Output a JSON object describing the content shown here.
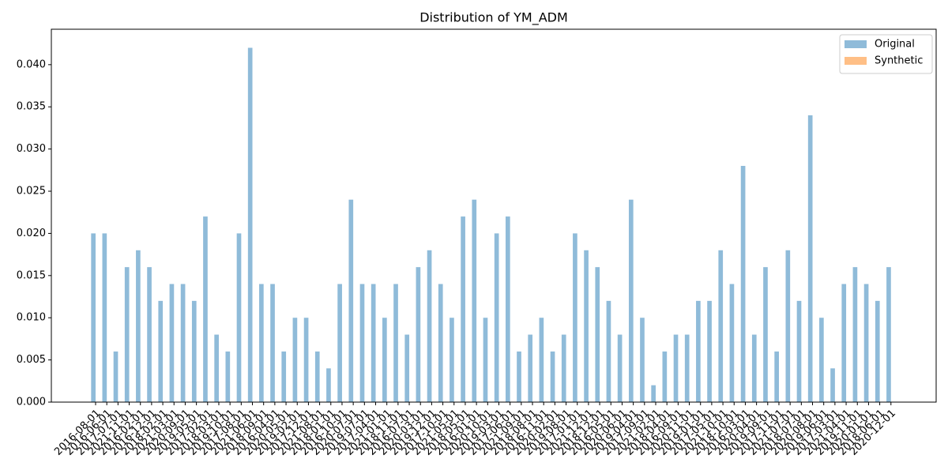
{
  "chart_data": {
    "type": "bar",
    "title": "Distribution of YM_ADM",
    "categories": [
      "2016-08-01",
      "2016-06-01",
      "2017-07-01",
      "2021-11-01",
      "2016-02-01",
      "2016-12-01",
      "2018-02-01",
      "2021-03-01",
      "2020-09-01",
      "2019-05-01",
      "2017-02-01",
      "2018-03-01",
      "2019-10-01",
      "2017-08-01",
      "2021-06-01",
      "2018-09-01",
      "2016-04-01",
      "2020-05-01",
      "2019-02-01",
      "2017-12-01",
      "2021-08-01",
      "2018-01-01",
      "2016-10-01",
      "2020-07-01",
      "2019-07-01",
      "2017-04-01",
      "2021-01-01",
      "2018-11-01",
      "2016-07-01",
      "2020-03-01",
      "2019-12-01",
      "2017-10-01",
      "2021-05-01",
      "2018-05-01",
      "2016-01-01",
      "2020-10-01",
      "2019-03-01",
      "2017-06-01",
      "2021-09-01",
      "2018-08-01",
      "2016-11-01",
      "2020-02-01",
      "2019-08-01",
      "2017-01-01",
      "2021-12-01",
      "2018-12-01",
      "2016-05-01",
      "2020-06-01",
      "2019-04-01",
      "2017-09-01",
      "2021-02-01",
      "2018-04-01",
      "2016-09-01",
      "2020-11-01",
      "2019-01-01",
      "2017-05-01",
      "2021-10-01",
      "2018-10-01",
      "2016-03-01",
      "2020-04-01",
      "2019-09-01",
      "2017-11-01",
      "2021-07-01",
      "2018-07-01",
      "2020-08-01",
      "2019-06-01",
      "2017-03-01",
      "2021-04-01",
      "2019-11-01",
      "2020-01-01",
      "2018-06-01",
      "2020-12-01"
    ],
    "series": [
      {
        "name": "Original",
        "color": "#1f77b4",
        "values": [
          0.02,
          0.02,
          0.006,
          0.016,
          0.018,
          0.016,
          0.012,
          0.014,
          0.014,
          0.012,
          0.022,
          0.008,
          0.006,
          0.02,
          0.042,
          0.014,
          0.014,
          0.006,
          0.01,
          0.01,
          0.006,
          0.004,
          0.014,
          0.024,
          0.014,
          0.014,
          0.01,
          0.014,
          0.008,
          0.016,
          0.018,
          0.014,
          0.01,
          0.022,
          0.024,
          0.01,
          0.02,
          0.022,
          0.006,
          0.008,
          0.01,
          0.006,
          0.008,
          0.02,
          0.018,
          0.016,
          0.012,
          0.008,
          0.024,
          0.01,
          0.002,
          0.006,
          0.008,
          0.008,
          0.012,
          0.012,
          0.018,
          0.014,
          0.028,
          0.008,
          0.016,
          0.006,
          0.018,
          0.012,
          0.034,
          0.01,
          0.004,
          0.014,
          0.016,
          0.014,
          0.012,
          0.016
        ]
      },
      {
        "name": "Synthetic",
        "color": "#ff7f0e",
        "values": [
          0,
          0,
          0,
          0,
          0,
          0,
          0,
          0,
          0,
          0,
          0,
          0,
          0,
          0,
          0,
          0,
          0,
          0,
          0,
          0,
          0,
          0,
          0,
          0,
          0,
          0,
          0,
          0,
          0,
          0,
          0,
          0,
          0,
          0,
          0,
          0,
          0,
          0,
          0,
          0,
          0,
          0,
          0,
          0,
          0,
          0,
          0,
          0,
          0,
          0,
          0,
          0,
          0,
          0,
          0,
          0,
          0,
          0,
          0,
          0,
          0,
          0,
          0,
          0,
          0,
          0,
          0,
          0,
          0,
          0,
          0,
          0
        ]
      }
    ],
    "ylim": [
      0,
      0.0442
    ],
    "yticks": [
      {
        "value": 0,
        "label": "0.000"
      },
      {
        "value": 0.005,
        "label": "0.005"
      },
      {
        "value": 0.01,
        "label": "0.010"
      },
      {
        "value": 0.015,
        "label": "0.015"
      },
      {
        "value": 0.02,
        "label": "0.020"
      },
      {
        "value": 0.025,
        "label": "0.025"
      },
      {
        "value": 0.03,
        "label": "0.030"
      },
      {
        "value": 0.035,
        "label": "0.035"
      },
      {
        "value": 0.04,
        "label": "0.040"
      }
    ],
    "legend": "upper right",
    "opacity": 0.5
  }
}
